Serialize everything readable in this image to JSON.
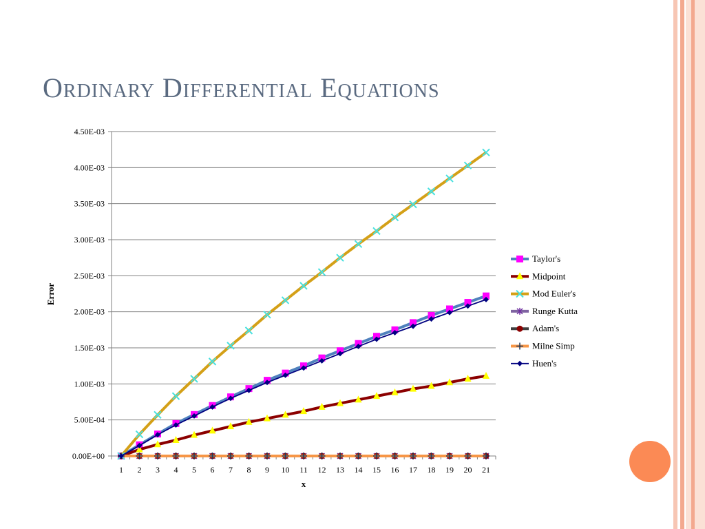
{
  "slide": {
    "title": "Ordinary Differential Equations"
  },
  "theme": {
    "title_color": "#5a6a80",
    "stripe_colors": [
      "#f7c6b4",
      "#f3a98f",
      "#fbe1d6"
    ],
    "accent_circle": "#fb8a55"
  },
  "chart_data": {
    "type": "line",
    "title": "",
    "xlabel": "x",
    "ylabel": "Error",
    "x": [
      1,
      2,
      3,
      4,
      5,
      6,
      7,
      8,
      9,
      10,
      11,
      12,
      13,
      14,
      15,
      16,
      17,
      18,
      19,
      20,
      21
    ],
    "xlim": [
      1,
      21
    ],
    "ylim": [
      0,
      0.0045
    ],
    "y_ticks": [
      "0.00E+00",
      "5.00E-04",
      "1.00E-03",
      "1.50E-03",
      "2.00E-03",
      "2.50E-03",
      "3.00E-03",
      "3.50E-03",
      "4.00E-03",
      "4.50E-03"
    ],
    "grid": true,
    "legend_position": "right",
    "series": [
      {
        "name": "Taylor's",
        "color": "#4f81bd",
        "marker": "square",
        "marker_color": "#ff00ff",
        "values": [
          0,
          0.000155,
          0.000305,
          0.00045,
          0.000575,
          0.0007,
          0.00082,
          0.000935,
          0.00105,
          0.00115,
          0.00125,
          0.00136,
          0.00146,
          0.00156,
          0.00166,
          0.00175,
          0.00185,
          0.00195,
          0.00204,
          0.00213,
          0.00222
        ]
      },
      {
        "name": "Midpoint",
        "color": "#8b0000",
        "marker": "triangle",
        "marker_color": "#ffff00",
        "values": [
          0,
          9e-05,
          0.00016,
          0.00022,
          0.00029,
          0.00035,
          0.00041,
          0.00047,
          0.00052,
          0.00057,
          0.00062,
          0.00068,
          0.00073,
          0.00078,
          0.00083,
          0.00088,
          0.00093,
          0.00097,
          0.00102,
          0.00107,
          0.00111
        ]
      },
      {
        "name": "Mod Euler's",
        "color": "#d4a017",
        "marker": "x",
        "marker_color": "#48e0e0",
        "values": [
          0,
          0.0003,
          0.00057,
          0.00083,
          0.00107,
          0.00131,
          0.00153,
          0.00174,
          0.00196,
          0.00216,
          0.00236,
          0.00255,
          0.00275,
          0.00294,
          0.00312,
          0.00331,
          0.00349,
          0.00367,
          0.00385,
          0.00403,
          0.00421
        ]
      },
      {
        "name": "Runge Kutta",
        "color": "#8064a2",
        "marker": "star",
        "marker_color": "#7030a0",
        "values": [
          0,
          0,
          0,
          0,
          0,
          0,
          0,
          0,
          0,
          0,
          0,
          0,
          0,
          0,
          0,
          0,
          0,
          0,
          0,
          0,
          0
        ]
      },
      {
        "name": "Adam's",
        "color": "#404040",
        "marker": "circle",
        "marker_color": "#8b0000",
        "values": [
          0,
          0,
          0,
          0,
          0,
          0,
          0,
          0,
          0,
          0,
          0,
          0,
          0,
          0,
          0,
          0,
          0,
          0,
          0,
          0,
          0
        ]
      },
      {
        "name": "Milne Simp",
        "color": "#f79646",
        "marker": "plus",
        "marker_color": "#1f3a5f",
        "values": [
          0,
          0,
          0,
          0,
          0,
          0,
          0,
          0,
          0,
          0,
          0,
          0,
          0,
          0,
          0,
          0,
          0,
          0,
          0,
          0,
          0
        ]
      },
      {
        "name": "Huen's",
        "color": "#000080",
        "marker": "diamond",
        "marker_color": "#000080",
        "values": [
          0,
          0.000145,
          0.000295,
          0.00043,
          0.000555,
          0.00068,
          0.0008,
          0.00091,
          0.00102,
          0.00112,
          0.00122,
          0.00132,
          0.00142,
          0.00152,
          0.00162,
          0.00171,
          0.0018,
          0.0019,
          0.00199,
          0.00208,
          0.00217
        ]
      }
    ]
  }
}
